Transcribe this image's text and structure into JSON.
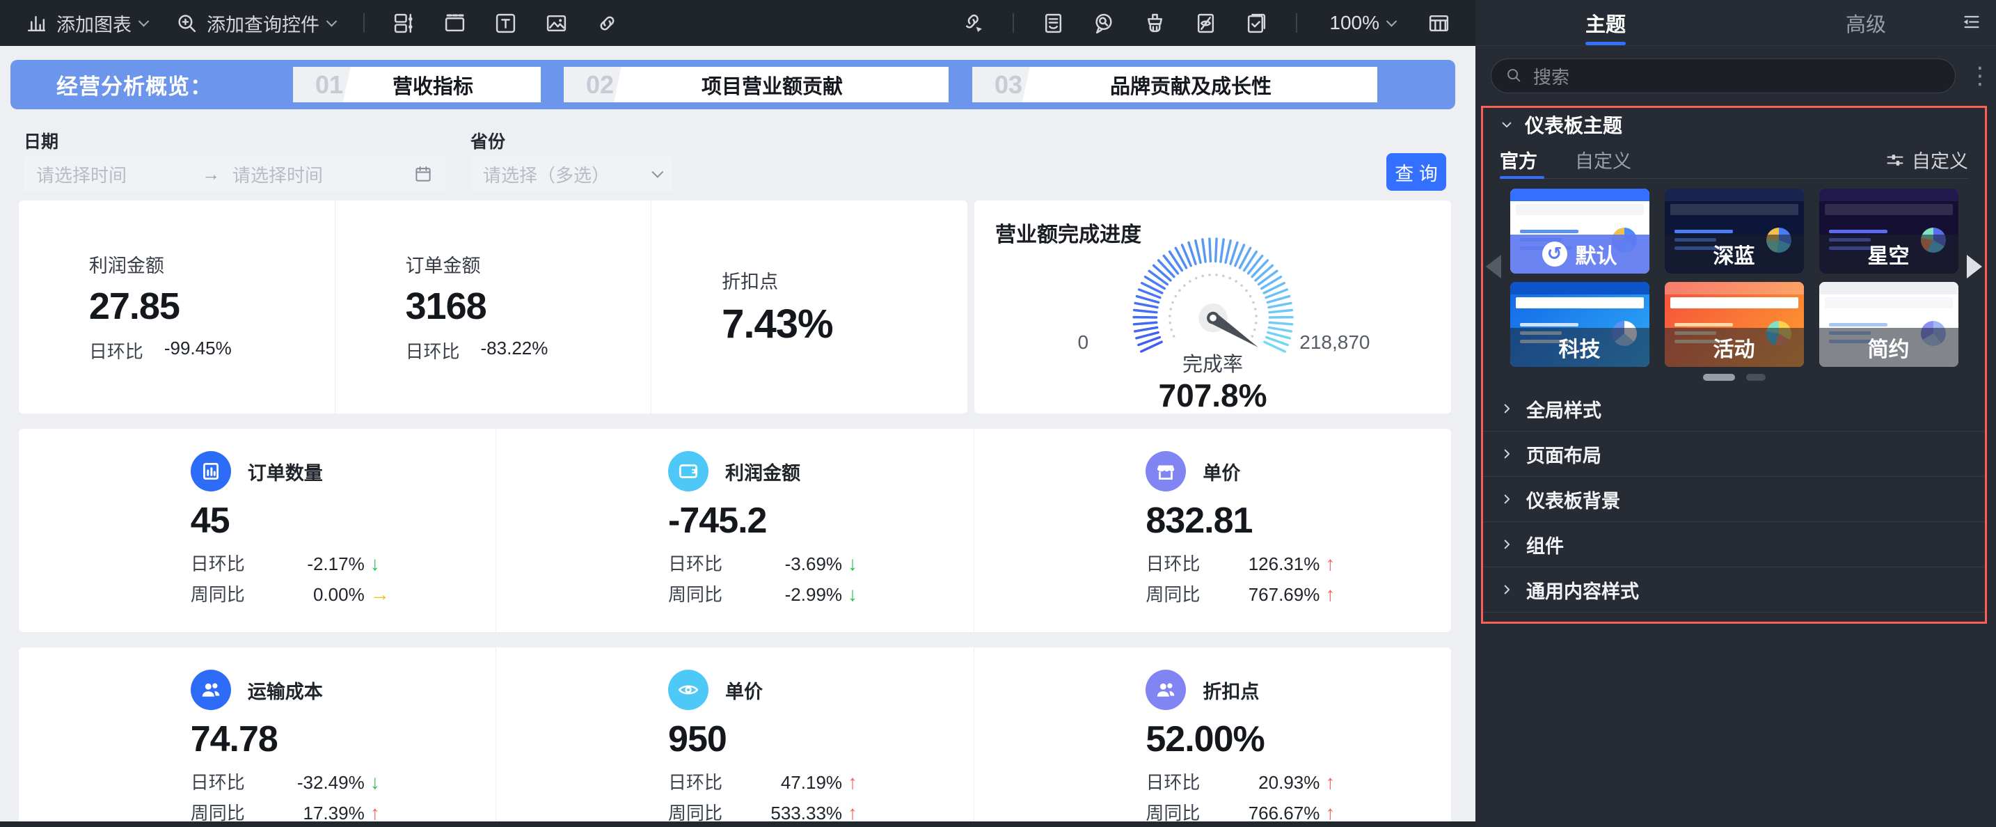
{
  "toolbar": {
    "add_chart_label": "添加图表",
    "add_query_label": "添加查询控件",
    "zoom_label": "100%"
  },
  "banner": {
    "title": "经营分析概览：",
    "items": [
      {
        "num": "01",
        "label": "营收指标"
      },
      {
        "num": "02",
        "label": "项目营业额贡献"
      },
      {
        "num": "03",
        "label": "品牌贡献及成长性"
      }
    ]
  },
  "filters": {
    "date_label": "日期",
    "date_start_placeholder": "请选择时间",
    "date_arrow": "→",
    "date_end_placeholder": "请选择时间",
    "province_label": "省份",
    "province_placeholder": "请选择（多选）",
    "query_button": "查 询"
  },
  "row1": {
    "cards": [
      {
        "label": "利润金额",
        "value": "27.85",
        "sub_key": "日环比",
        "sub_value": "-99.45%"
      },
      {
        "label": "订单金额",
        "value": "3168",
        "sub_key": "日环比",
        "sub_value": "-83.22%"
      },
      {
        "label": "折扣点",
        "value": "7.43%"
      }
    ]
  },
  "gauge": {
    "type": "gauge",
    "title": "营业额完成进度",
    "min": "0",
    "max": "218,870",
    "metric_label": "完成率",
    "value": "707.8%"
  },
  "row2": {
    "cards": [
      {
        "icon": "orders-icon",
        "label": "订单数量",
        "value": "45",
        "day_key": "日环比",
        "day_value": "-2.17%",
        "day_trend": "down",
        "week_key": "周同比",
        "week_value": "0.00%",
        "week_trend": "flat"
      },
      {
        "icon": "wallet-icon",
        "label": "利润金额",
        "value": "-745.2",
        "day_key": "日环比",
        "day_value": "-3.69%",
        "day_trend": "down",
        "week_key": "周同比",
        "week_value": "-2.99%",
        "week_trend": "down"
      },
      {
        "icon": "shop-icon",
        "label": "单价",
        "value": "832.81",
        "day_key": "日环比",
        "day_value": "126.31%",
        "day_trend": "up",
        "week_key": "周同比",
        "week_value": "767.69%",
        "week_trend": "up"
      }
    ]
  },
  "row3": {
    "cards": [
      {
        "icon": "people-icon",
        "label": "运输成本",
        "value": "74.78",
        "day_key": "日环比",
        "day_value": "-32.49%",
        "day_trend": "down",
        "week_key": "周同比",
        "week_value": "17.39%",
        "week_trend": "up"
      },
      {
        "icon": "eye-icon",
        "label": "单价",
        "value": "950",
        "day_key": "日环比",
        "day_value": "47.19%",
        "day_trend": "up",
        "week_key": "周同比",
        "week_value": "533.33%",
        "week_trend": "up"
      },
      {
        "icon": "people-icon",
        "label": "折扣点",
        "value": "52.00%",
        "day_key": "日环比",
        "day_value": "20.93%",
        "day_trend": "up",
        "week_key": "周同比",
        "week_value": "766.67%",
        "week_trend": "up"
      }
    ]
  },
  "panel": {
    "tabs": [
      {
        "label": "主题"
      },
      {
        "label": "高级"
      }
    ],
    "search_placeholder": "搜索",
    "dashboard_theme_label": "仪表板主题",
    "theme_tabs": [
      {
        "label": "官方"
      },
      {
        "label": "自定义"
      }
    ],
    "customize_label": "自定义",
    "selected_badge": "↺",
    "themes": [
      {
        "name": "默认",
        "selected": true
      },
      {
        "name": "深蓝"
      },
      {
        "name": "星空"
      },
      {
        "name": "科技"
      },
      {
        "name": "活动"
      },
      {
        "name": "简约"
      }
    ],
    "accordions": [
      "全局样式",
      "页面布局",
      "仪表板背景",
      "组件",
      "通用内容样式"
    ]
  },
  "colors": {
    "accent_blue": "#3370ff",
    "banner_blue": "#6c96ec",
    "highlight_red": "#fa5f58",
    "trend_up_red": "#f5635c",
    "trend_down_green": "#2fbe57",
    "trend_flat_yellow": "#e8c31d",
    "kpi_icon_blue": "#2d6cf6",
    "kpi_icon_cyan": "#4ec9f7",
    "kpi_icon_purple": "#8185f4"
  }
}
